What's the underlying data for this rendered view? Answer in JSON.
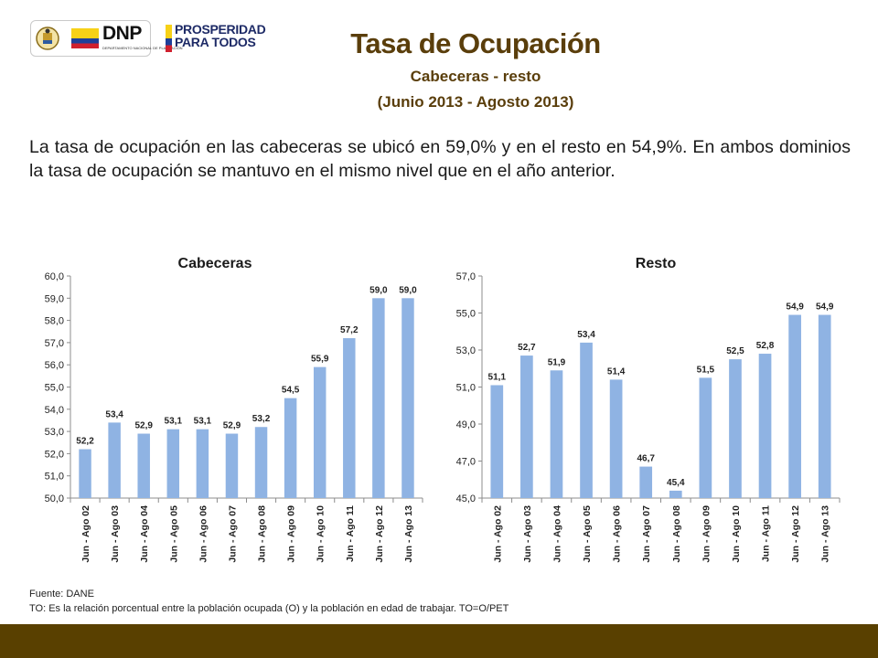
{
  "header": {
    "title": "Tasa de Ocupación",
    "subtitle": "Cabeceras - resto",
    "period": "(Junio 2013 - Agosto 2013)",
    "logos": {
      "dnp": "DNP",
      "dnp_sub": "DEPARTAMENTO NACIONAL DE PLANEACIÓN",
      "prosperidad_line1": "PROSPERIDAD",
      "prosperidad_line2": "PARA TODOS"
    }
  },
  "paragraph": "La tasa de ocupación en las cabeceras se ubicó en 59,0% y en el resto en 54,9%. En ambos dominios la tasa de ocupación se mantuvo en el mismo nivel que en el año anterior.",
  "colors": {
    "title": "#5a3e0b",
    "bar": "#8fb3e3",
    "axis": "#8c8c8c",
    "footer": "#594000"
  },
  "chart_data": [
    {
      "type": "bar",
      "title": "Cabeceras",
      "categories": [
        "Jun - Ago 02",
        "Jun - Ago 03",
        "Jun - Ago 04",
        "Jun - Ago 05",
        "Jun - Ago 06",
        "Jun - Ago 07",
        "Jun - Ago 08",
        "Jun - Ago 09",
        "Jun - Ago 10",
        "Jun - Ago 11",
        "Jun - Ago 12",
        "Jun - Ago 13"
      ],
      "values": [
        52.2,
        53.4,
        52.9,
        53.1,
        53.1,
        52.9,
        53.2,
        54.5,
        55.9,
        57.2,
        59.0,
        59.0
      ],
      "value_labels": [
        "52,2",
        "53,4",
        "52,9",
        "53,1",
        "53,1",
        "52,9",
        "53,2",
        "54,5",
        "55,9",
        "57,2",
        "59,0",
        "59,0"
      ],
      "yticks": [
        "50,0",
        "51,0",
        "52,0",
        "53,0",
        "54,0",
        "55,0",
        "56,0",
        "57,0",
        "58,0",
        "59,0",
        "60,0"
      ],
      "ylim": [
        50,
        60
      ],
      "grid": false,
      "legend": "none"
    },
    {
      "type": "bar",
      "title": "Resto",
      "categories": [
        "Jun - Ago 02",
        "Jun - Ago 03",
        "Jun - Ago 04",
        "Jun - Ago 05",
        "Jun - Ago 06",
        "Jun - Ago 07",
        "Jun - Ago 08",
        "Jun - Ago 09",
        "Jun - Ago 10",
        "Jun - Ago 11",
        "Jun - Ago 12",
        "Jun - Ago 13"
      ],
      "values": [
        51.1,
        52.7,
        51.9,
        53.4,
        51.4,
        46.7,
        45.4,
        51.5,
        52.5,
        52.8,
        54.9,
        54.9
      ],
      "value_labels": [
        "51,1",
        "52,7",
        "51,9",
        "53,4",
        "51,4",
        "46,7",
        "45,4",
        "51,5",
        "52,5",
        "52,8",
        "54,9",
        "54,9"
      ],
      "yticks": [
        "45,0",
        "47,0",
        "49,0",
        "51,0",
        "53,0",
        "55,0",
        "57,0"
      ],
      "ylim": [
        45,
        57
      ],
      "grid": false,
      "legend": "none"
    }
  ],
  "footnotes": {
    "source": "Fuente: DANE",
    "definition": "TO: Es la relación porcentual entre la población ocupada (O) y la población  en edad de trabajar. TO=O/PET"
  }
}
